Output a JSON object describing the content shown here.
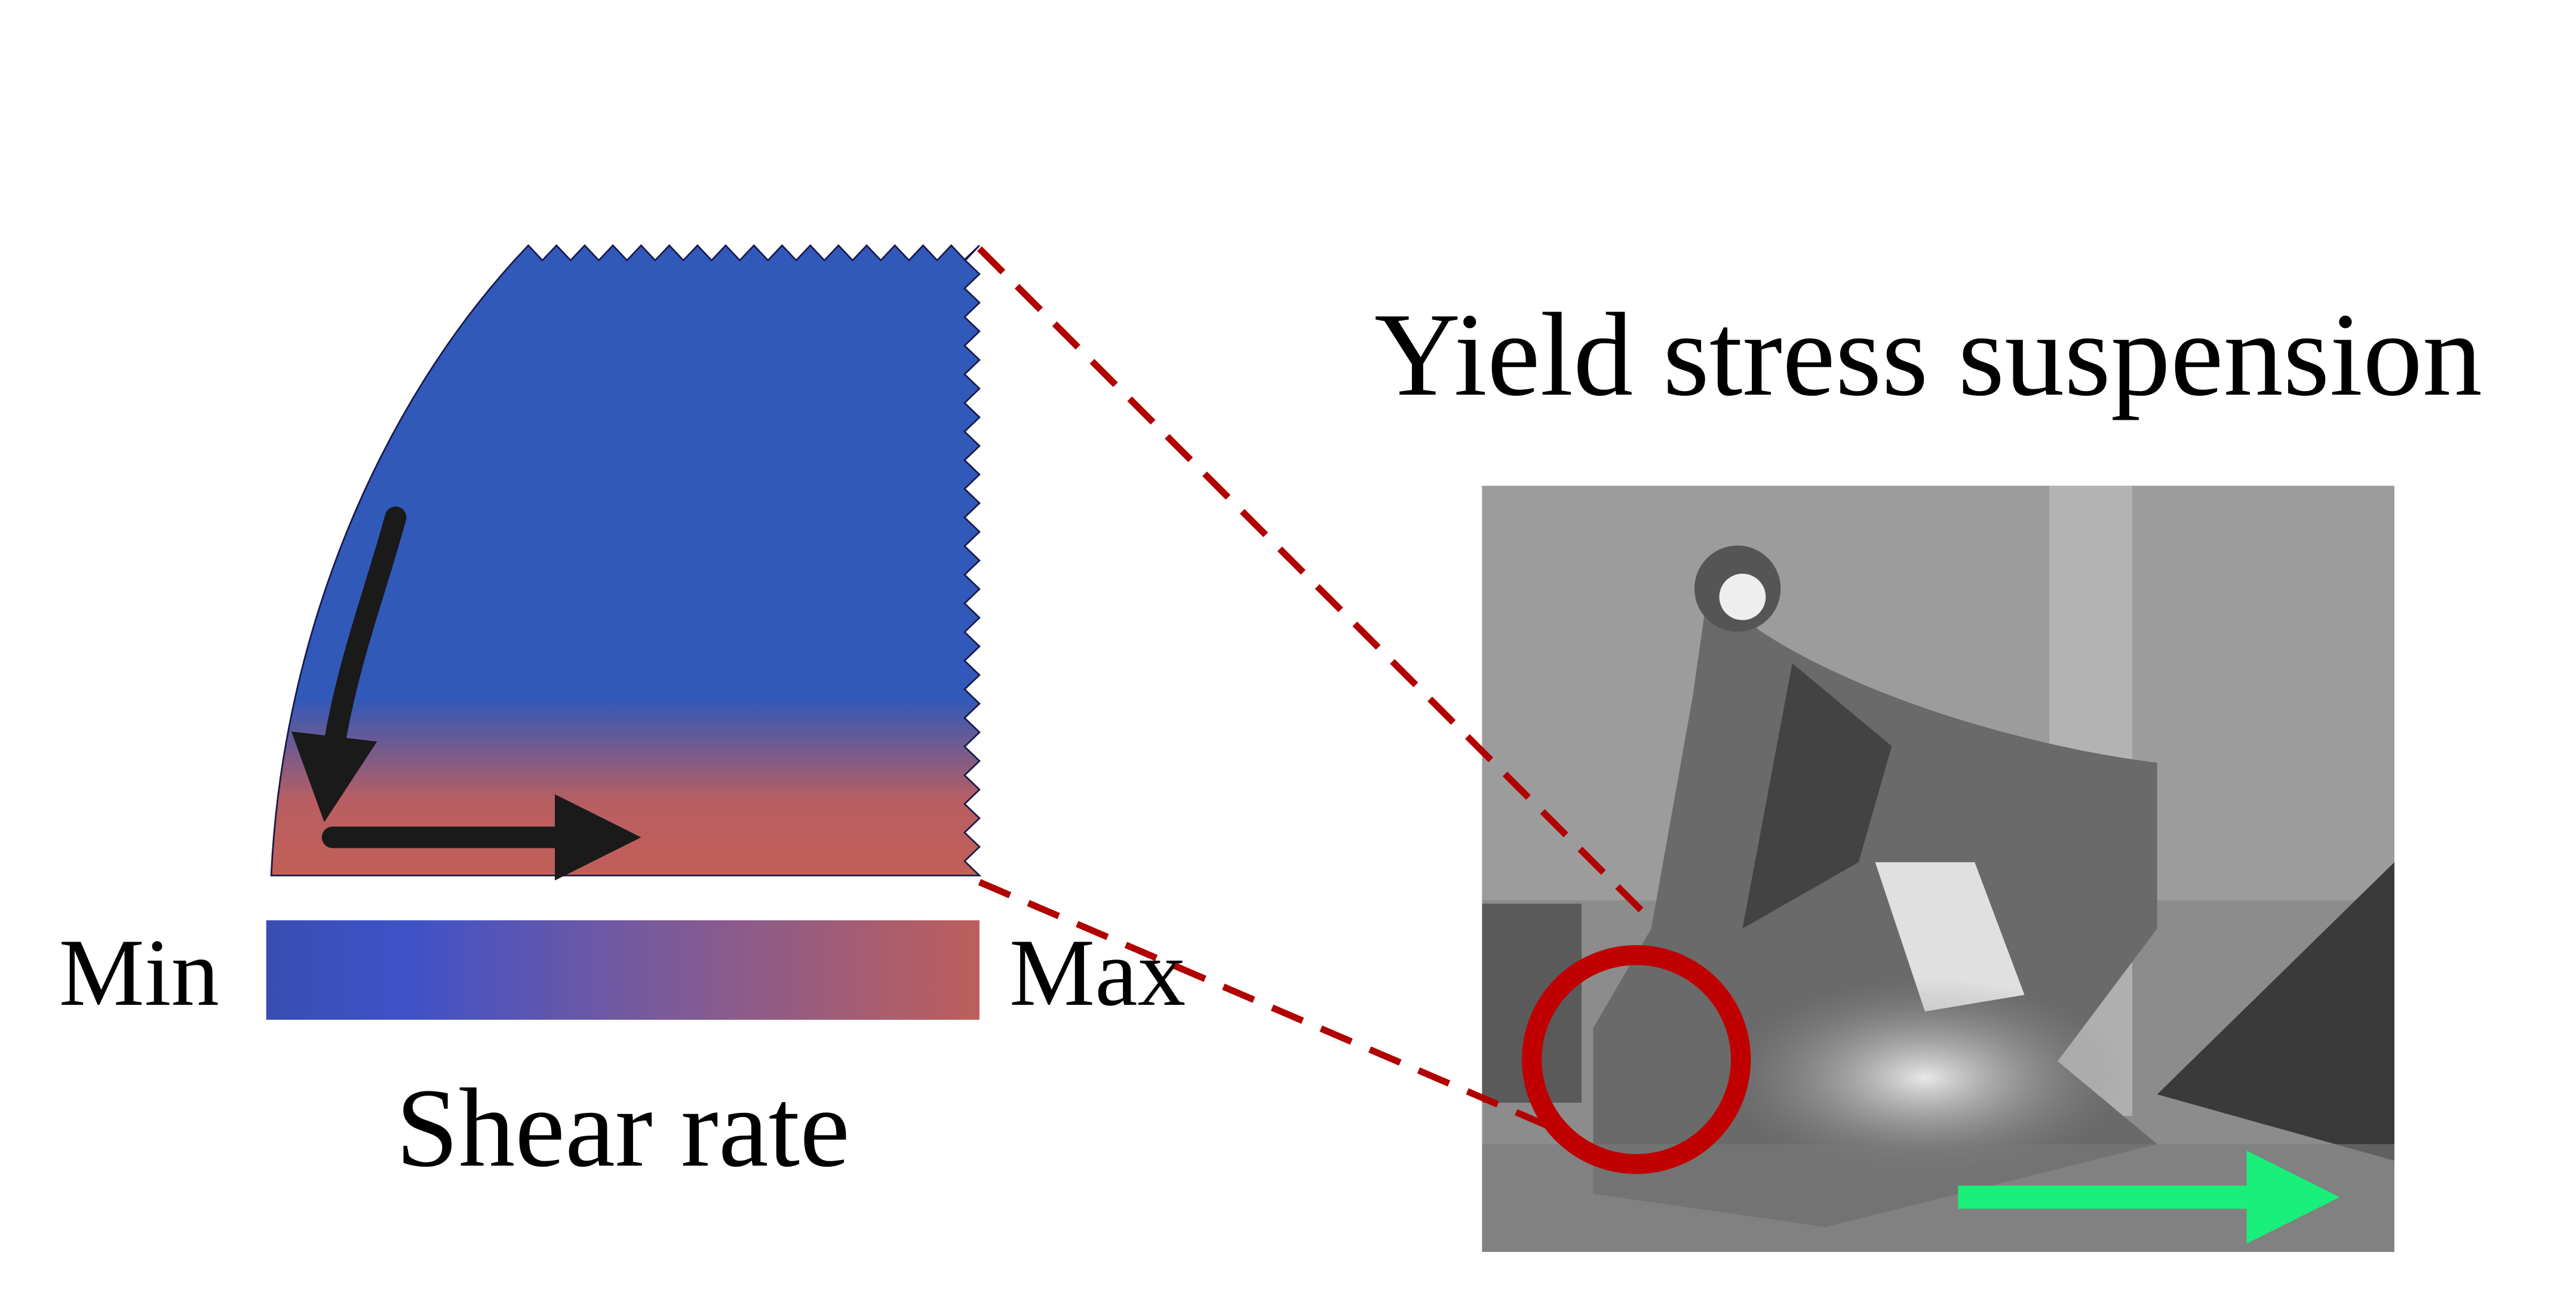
{
  "title": "Yield stress suspension",
  "colorbar": {
    "min_label": "Min",
    "max_label": "Max",
    "label": "Shear rate"
  }
}
